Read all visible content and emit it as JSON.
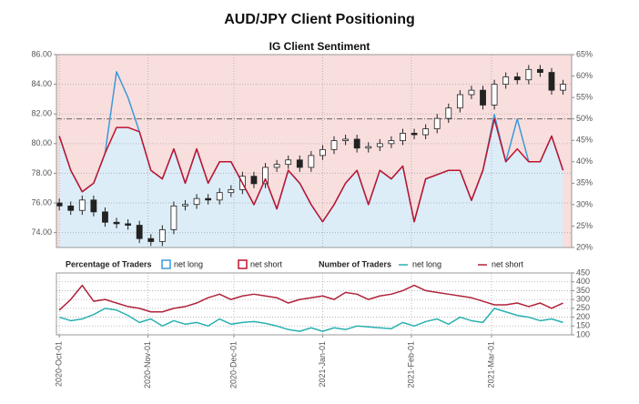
{
  "chart_data": [
    {
      "type": "candlestick",
      "title": "AUD/JPY Client Positioning",
      "subtitle": "IG Client Sentiment",
      "legend_title": "Percentage of Traders",
      "x": [
        "2020-10-01",
        "2020-10-05",
        "2020-10-09",
        "2020-10-13",
        "2020-10-17",
        "2020-10-21",
        "2020-10-25",
        "2020-10-29",
        "2020-11-02",
        "2020-11-06",
        "2020-11-10",
        "2020-11-14",
        "2020-11-18",
        "2020-11-22",
        "2020-11-26",
        "2020-11-30",
        "2020-12-04",
        "2020-12-08",
        "2020-12-12",
        "2020-12-16",
        "2020-12-20",
        "2020-12-24",
        "2020-12-28",
        "2021-01-01",
        "2021-01-05",
        "2021-01-09",
        "2021-01-13",
        "2021-01-17",
        "2021-01-21",
        "2021-01-25",
        "2021-01-29",
        "2021-02-02",
        "2021-02-06",
        "2021-02-10",
        "2021-02-14",
        "2021-02-18",
        "2021-02-22",
        "2021-02-26",
        "2021-03-02",
        "2021-03-06",
        "2021-03-10",
        "2021-03-14",
        "2021-03-18",
        "2021-03-22",
        "2021-03-26"
      ],
      "open": [
        76.0,
        75.8,
        75.5,
        76.2,
        75.4,
        74.7,
        74.6,
        74.5,
        73.6,
        73.4,
        74.2,
        75.8,
        75.9,
        76.3,
        76.2,
        76.7,
        76.9,
        77.8,
        77.3,
        78.4,
        78.6,
        78.9,
        78.4,
        79.2,
        79.6,
        80.2,
        80.3,
        79.7,
        79.8,
        80.0,
        80.2,
        80.7,
        80.6,
        81.0,
        81.7,
        82.4,
        83.3,
        83.6,
        82.6,
        84.0,
        84.5,
        84.3,
        85.0,
        84.8,
        83.6
      ],
      "high": [
        76.3,
        76.1,
        76.5,
        76.5,
        75.7,
        75.0,
        74.9,
        74.8,
        73.9,
        74.5,
        76.1,
        76.2,
        76.6,
        76.6,
        77.0,
        77.2,
        78.1,
        78.1,
        78.7,
        78.9,
        79.2,
        79.2,
        79.5,
        79.9,
        80.5,
        80.6,
        80.6,
        80.1,
        80.3,
        80.5,
        81.0,
        81.0,
        81.3,
        82.0,
        82.7,
        83.6,
        83.9,
        83.9,
        84.3,
        84.8,
        84.8,
        85.3,
        85.3,
        85.1,
        84.3
      ],
      "low": [
        75.5,
        75.2,
        75.2,
        75.1,
        74.4,
        74.3,
        74.2,
        73.3,
        73.1,
        73.1,
        73.9,
        75.5,
        75.6,
        75.9,
        75.9,
        76.4,
        76.6,
        77.0,
        77.0,
        78.1,
        78.3,
        78.1,
        78.1,
        78.9,
        79.3,
        79.9,
        79.4,
        79.4,
        79.5,
        79.7,
        79.9,
        80.3,
        80.3,
        80.7,
        81.4,
        82.1,
        83.0,
        82.3,
        82.3,
        83.7,
        84.0,
        84.0,
        84.5,
        83.3,
        83.3
      ],
      "close": [
        75.8,
        75.5,
        76.2,
        75.4,
        74.7,
        74.6,
        74.5,
        73.6,
        73.4,
        74.2,
        75.8,
        75.9,
        76.3,
        76.2,
        76.7,
        76.9,
        77.8,
        77.3,
        78.4,
        78.6,
        78.9,
        78.4,
        79.2,
        79.6,
        80.2,
        80.3,
        79.7,
        79.8,
        80.0,
        80.2,
        80.7,
        80.6,
        81.0,
        81.7,
        82.4,
        83.3,
        83.6,
        82.6,
        84.0,
        84.5,
        84.3,
        85.0,
        84.8,
        83.6,
        84.0
      ],
      "up_color": "#ffffff",
      "down_color": "#222222",
      "series": [
        {
          "name": "net long",
          "color": "#3a9ad9",
          "axis": "y2",
          "values": [
            46,
            38,
            33,
            35,
            42,
            61,
            55,
            47,
            38,
            36,
            43,
            35,
            43,
            35,
            40,
            40,
            35,
            30,
            36,
            29,
            38,
            35,
            30,
            26,
            30,
            35,
            38,
            30,
            38,
            36,
            39,
            26,
            36,
            37,
            38,
            38,
            31,
            38,
            51,
            40,
            50,
            40,
            40,
            46,
            38
          ]
        },
        {
          "name": "net short",
          "color": "#c0122d",
          "axis": "y2",
          "values": [
            46,
            38,
            33,
            35,
            42,
            48,
            48,
            47,
            38,
            36,
            43,
            35,
            43,
            35,
            40,
            40,
            35,
            30,
            36,
            29,
            38,
            35,
            30,
            26,
            30,
            35,
            38,
            30,
            38,
            36,
            39,
            26,
            36,
            37,
            38,
            38,
            31,
            38,
            50,
            40,
            43,
            40,
            40,
            46,
            38
          ]
        }
      ],
      "xlim": [
        "2020-09-30",
        "2021-03-29"
      ],
      "ylim": [
        73,
        86
      ],
      "yticks": [
        {
          "value": 74,
          "label": "74.00"
        },
        {
          "value": 76,
          "label": "76.00"
        },
        {
          "value": 78,
          "label": "78.00"
        },
        {
          "value": 80,
          "label": "80.00"
        },
        {
          "value": 82,
          "label": "82.00"
        },
        {
          "value": 84,
          "label": "84.00"
        },
        {
          "value": 86,
          "label": "86.00"
        }
      ],
      "y2lim": [
        20,
        65
      ],
      "y2ticks": [
        {
          "value": 20,
          "label": "20%"
        },
        {
          "value": 25,
          "label": "25%"
        },
        {
          "value": 30,
          "label": "30%"
        },
        {
          "value": 35,
          "label": "35%"
        },
        {
          "value": 40,
          "label": "40%"
        },
        {
          "value": 45,
          "label": "45%"
        },
        {
          "value": 50,
          "label": "50%"
        },
        {
          "value": 55,
          "label": "55%"
        },
        {
          "value": 60,
          "label": "60%"
        },
        {
          "value": 65,
          "label": "65%"
        }
      ],
      "y2_reference": 50,
      "grid": true
    },
    {
      "type": "line",
      "legend_title": "Number of Traders",
      "x": [
        "2020-10-01",
        "2020-10-05",
        "2020-10-09",
        "2020-10-13",
        "2020-10-17",
        "2020-10-21",
        "2020-10-25",
        "2020-10-29",
        "2020-11-02",
        "2020-11-06",
        "2020-11-10",
        "2020-11-14",
        "2020-11-18",
        "2020-11-22",
        "2020-11-26",
        "2020-11-30",
        "2020-12-04",
        "2020-12-08",
        "2020-12-12",
        "2020-12-16",
        "2020-12-20",
        "2020-12-24",
        "2020-12-28",
        "2021-01-01",
        "2021-01-05",
        "2021-01-09",
        "2021-01-13",
        "2021-01-17",
        "2021-01-21",
        "2021-01-25",
        "2021-01-29",
        "2021-02-02",
        "2021-02-06",
        "2021-02-10",
        "2021-02-14",
        "2021-02-18",
        "2021-02-22",
        "2021-02-26",
        "2021-03-02",
        "2021-03-06",
        "2021-03-10",
        "2021-03-14",
        "2021-03-18",
        "2021-03-22",
        "2021-03-26"
      ],
      "series": [
        {
          "name": "net long",
          "color": "#2ab0b0",
          "values": [
            200,
            180,
            190,
            215,
            250,
            240,
            210,
            170,
            190,
            150,
            180,
            160,
            170,
            150,
            190,
            160,
            170,
            175,
            165,
            150,
            130,
            120,
            140,
            120,
            140,
            130,
            150,
            145,
            140,
            135,
            170,
            150,
            175,
            190,
            160,
            200,
            180,
            170,
            250,
            230,
            210,
            200,
            180,
            190,
            170
          ]
        },
        {
          "name": "net short",
          "color": "#b0223a",
          "values": [
            240,
            300,
            380,
            290,
            300,
            280,
            260,
            250,
            230,
            230,
            250,
            260,
            280,
            310,
            330,
            300,
            320,
            330,
            320,
            310,
            280,
            300,
            310,
            320,
            300,
            340,
            330,
            300,
            320,
            330,
            350,
            380,
            350,
            340,
            330,
            320,
            310,
            290,
            270,
            270,
            280,
            260,
            280,
            250,
            280
          ]
        }
      ],
      "xlim": [
        "2020-09-30",
        "2021-03-29"
      ],
      "xticks": [
        {
          "value": "2020-10-01",
          "label": "2020-Oct-01"
        },
        {
          "value": "2020-11-01",
          "label": "2020-Nov-01"
        },
        {
          "value": "2020-12-01",
          "label": "2020-Dec-01"
        },
        {
          "value": "2021-01-01",
          "label": "2021-Jan-01"
        },
        {
          "value": "2021-02-01",
          "label": "2021-Feb-01"
        },
        {
          "value": "2021-03-01",
          "label": "2021-Mar-01"
        }
      ],
      "ylim": [
        100,
        450
      ],
      "yticks": [
        100,
        150,
        200,
        250,
        300,
        350,
        400,
        450
      ],
      "grid": true
    }
  ]
}
